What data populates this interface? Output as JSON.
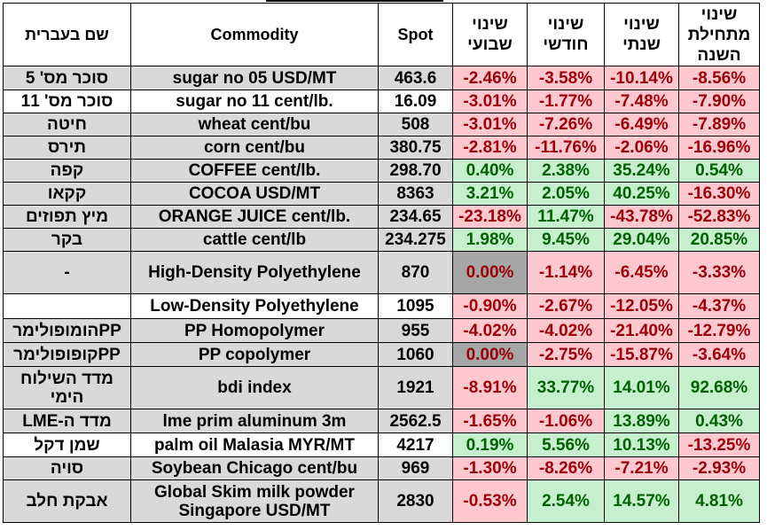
{
  "headers": {
    "hebrew_name": "שם בעברית",
    "commodity": "Commodity",
    "spot": "Spot",
    "weekly": "שינוי שבועי",
    "monthly": "שינוי חודשי",
    "yearly": "שינוי שנתי",
    "ytd": "שינוי מתחילת השנה"
  },
  "rows": [
    {
      "heb": "סוכר מס' 5",
      "commodity": "sugar no 05 USD/MT",
      "spot": "463.6",
      "weekly": "-2.46%",
      "monthly": "-3.58%",
      "yearly": "-10.14%",
      "ytd": "-8.56%"
    },
    {
      "heb": "סוכר מס' 11",
      "commodity": "sugar no 11 cent/lb.",
      "spot": "16.09",
      "weekly": "-3.01%",
      "monthly": "-1.77%",
      "yearly": "-7.48%",
      "ytd": "-7.90%"
    },
    {
      "heb": "חיטה",
      "commodity": "wheat cent/bu",
      "spot": "508",
      "weekly": "-3.01%",
      "monthly": "-7.26%",
      "yearly": "-6.49%",
      "ytd": "-7.89%"
    },
    {
      "heb": "תירס",
      "commodity": "corn cent/bu",
      "spot": "380.75",
      "weekly": "-2.81%",
      "monthly": "-11.76%",
      "yearly": "-2.06%",
      "ytd": "-16.96%"
    },
    {
      "heb": "קפה",
      "commodity": "COFFEE cent/lb.",
      "spot": "298.70",
      "weekly": "0.40%",
      "monthly": "2.38%",
      "yearly": "35.24%",
      "ytd": "0.54%"
    },
    {
      "heb": "קקאו",
      "commodity": "COCOA USD/MT",
      "spot": "8363",
      "weekly": "3.21%",
      "monthly": "2.05%",
      "yearly": "40.25%",
      "ytd": "-16.30%"
    },
    {
      "heb": "מיץ תפוזים",
      "commodity": "ORANGE JUICE cent/lb.",
      "spot": "234.65",
      "weekly": "-23.18%",
      "monthly": "11.47%",
      "yearly": "-43.78%",
      "ytd": "-52.83%"
    },
    {
      "heb": "בקר",
      "commodity": "cattle cent/lb",
      "spot": "234.275",
      "weekly": "1.98%",
      "monthly": "9.45%",
      "yearly": "29.04%",
      "ytd": "20.85%"
    },
    {
      "heb": "-",
      "commodity": "High-Density Polyethylene",
      "spot": "870",
      "weekly": "0.00%",
      "monthly": "-1.14%",
      "yearly": "-6.45%",
      "ytd": "-3.33%"
    },
    {
      "heb": "",
      "commodity": "Low-Density Polyethylene",
      "spot": "1095",
      "weekly": "-0.90%",
      "monthly": "-2.67%",
      "yearly": "-12.05%",
      "ytd": "-4.37%"
    },
    {
      "heb": "PPהומופולימר",
      "commodity": "PP Homopolymer",
      "spot": "955",
      "weekly": "-4.02%",
      "monthly": "-4.02%",
      "yearly": "-21.40%",
      "ytd": "-12.79%"
    },
    {
      "heb": "PPקופופולימר",
      "commodity": "PP copolymer",
      "spot": "1060",
      "weekly": "0.00%",
      "monthly": "-2.75%",
      "yearly": "-15.87%",
      "ytd": "-3.64%"
    },
    {
      "heb": "מדד השילוח הימי",
      "commodity": "bdi index",
      "spot": "1921",
      "weekly": "-8.91%",
      "monthly": "33.77%",
      "yearly": "14.01%",
      "ytd": "92.68%"
    },
    {
      "heb": "מדד ה-LME",
      "commodity": "lme prim aluminum 3m",
      "spot": "2562.5",
      "weekly": "-1.65%",
      "monthly": "-1.06%",
      "yearly": "13.89%",
      "ytd": "0.43%"
    },
    {
      "heb": "שמן דקל",
      "commodity": "palm oil Malasia MYR/MT",
      "spot": "4217",
      "weekly": "0.19%",
      "monthly": "5.56%",
      "yearly": "10.13%",
      "ytd": "-13.25%"
    },
    {
      "heb": "סויה",
      "commodity": "Soybean Chicago cent/bu",
      "spot": "969",
      "weekly": "-1.30%",
      "monthly": "-8.26%",
      "yearly": "-7.21%",
      "ytd": "-2.93%"
    },
    {
      "heb": "אבקת חלב",
      "commodity": "Global Skim milk powder Singapore USD/MT",
      "spot": "2830",
      "weekly": "-0.53%",
      "monthly": "2.54%",
      "yearly": "14.57%",
      "ytd": "4.81%"
    }
  ],
  "colors": {
    "negative_fill": "#ffc7ce",
    "negative_text": "#9c0006",
    "positive_fill": "#c6efce",
    "positive_text": "#006100",
    "zero_fill": "#a6a6a6",
    "gray_row_fill": "#d9d9d9"
  }
}
